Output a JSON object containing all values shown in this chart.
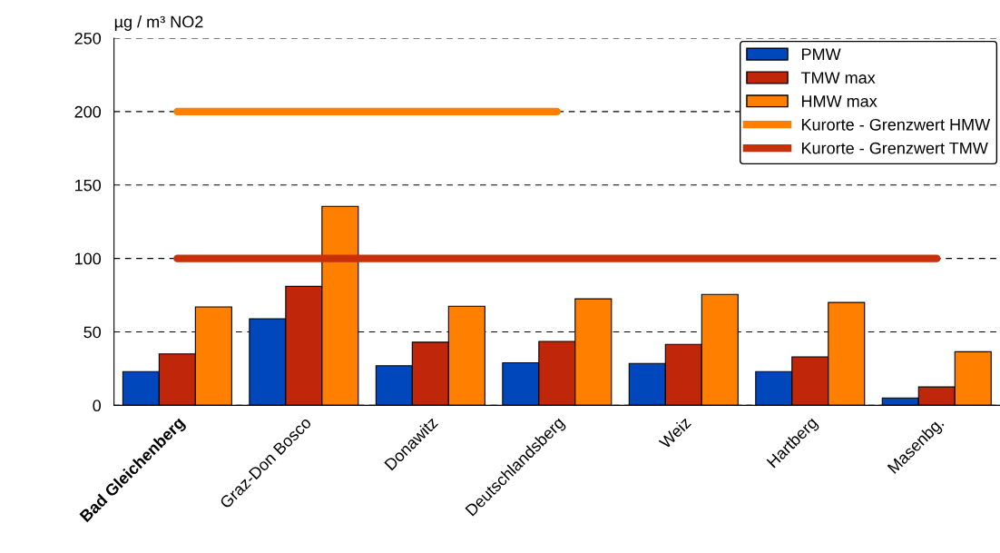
{
  "chart_data": {
    "type": "bar",
    "ylabel": "µg / m³ NO2",
    "categories": [
      "Bad Gleichenberg",
      "Graz-Don Bosco",
      "Donawitz",
      "Deutschlandsberg",
      "Weiz",
      "Hartberg",
      "Masenbg."
    ],
    "series": [
      {
        "name": "PMW",
        "color": "#0047bb",
        "values": [
          23,
          59,
          27,
          29,
          28.5,
          23,
          5
        ]
      },
      {
        "name": "TMW max",
        "color": "#c0260a",
        "values": [
          35,
          81,
          43,
          43.5,
          41.5,
          33,
          12.5
        ]
      },
      {
        "name": "HMW max",
        "color": "#ff8000",
        "values": [
          67,
          135.5,
          67.5,
          72.5,
          75.5,
          70,
          36.5
        ]
      },
      {
        "name": "Kurorte - Grenzwert HMW",
        "type": "line",
        "color": "#ff8000",
        "values": [
          200,
          200,
          200,
          200,
          null,
          null,
          null
        ]
      },
      {
        "name": "Kurorte - Grenzwert TMW",
        "type": "line",
        "color": "#c8300a",
        "values": [
          100,
          100,
          100,
          100,
          100,
          100,
          100
        ]
      }
    ],
    "ylim": [
      0,
      250
    ],
    "yticks": [
      0,
      50,
      100,
      150,
      200,
      250
    ],
    "grid": "y",
    "legend": "top right"
  }
}
